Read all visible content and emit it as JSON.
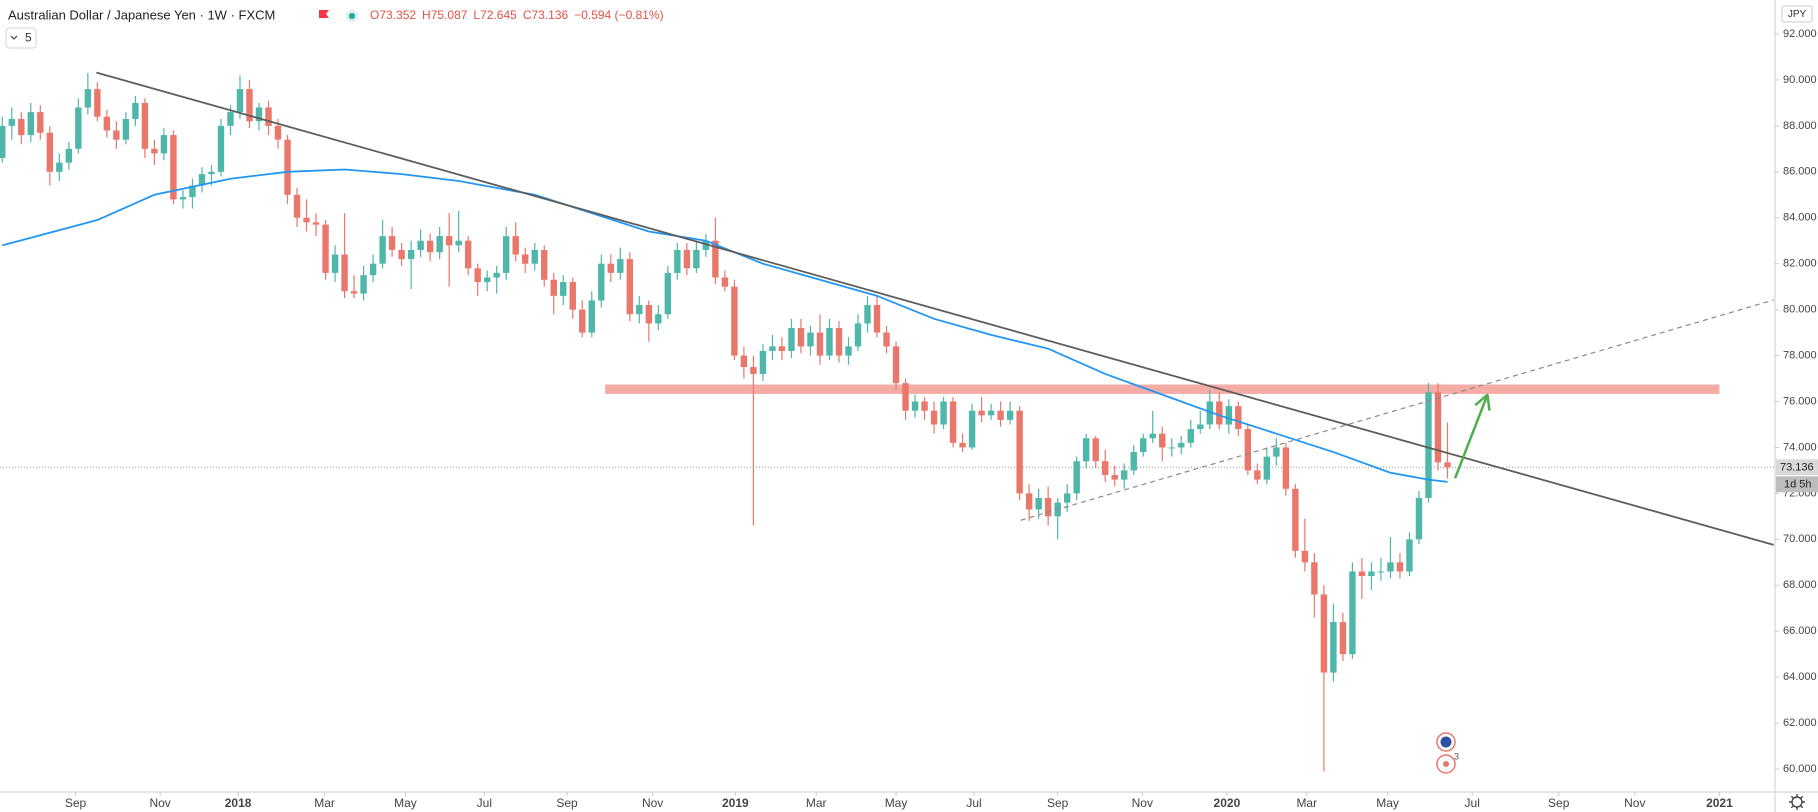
{
  "header": {
    "symbol": "Australian Dollar / Japanese Yen · 1W · FXCM",
    "ohlc": [
      "O73.352",
      "H75.087",
      "L72.645",
      "C73.136"
    ],
    "change": "−0.594 (−0.81%)"
  },
  "indicators_count": 5,
  "currency": "JPY",
  "events_count": 3,
  "chart_data": {
    "type": "candlestick",
    "colors": {
      "up": "#4fb6aa",
      "down": "#e9776c"
    },
    "candles": [
      [
        86.6,
        88.4,
        86.4,
        88.0
      ],
      [
        88.0,
        88.8,
        87.4,
        88.3
      ],
      [
        88.3,
        88.6,
        87.2,
        87.6
      ],
      [
        87.6,
        89.0,
        87.3,
        88.6
      ],
      [
        88.6,
        88.9,
        87.4,
        87.7
      ],
      [
        87.7,
        88.0,
        85.4,
        86.0
      ],
      [
        86.0,
        86.8,
        85.6,
        86.4
      ],
      [
        86.4,
        87.3,
        86.1,
        87.0
      ],
      [
        87.0,
        89.2,
        86.8,
        88.8
      ],
      [
        88.8,
        90.3,
        88.5,
        89.6
      ],
      [
        89.6,
        89.9,
        88.2,
        88.4
      ],
      [
        88.4,
        88.7,
        87.5,
        87.8
      ],
      [
        87.8,
        88.2,
        87.0,
        87.4
      ],
      [
        87.4,
        88.6,
        87.2,
        88.3
      ],
      [
        88.3,
        89.3,
        88.0,
        89.0
      ],
      [
        89.0,
        89.2,
        86.6,
        87.0
      ],
      [
        87.0,
        87.4,
        86.3,
        86.8
      ],
      [
        86.8,
        87.9,
        86.5,
        87.6
      ],
      [
        87.6,
        87.8,
        84.6,
        84.8
      ],
      [
        84.8,
        85.2,
        84.4,
        84.9
      ],
      [
        84.9,
        85.7,
        84.4,
        85.4
      ],
      [
        85.4,
        86.2,
        85.1,
        85.9
      ],
      [
        85.9,
        86.3,
        85.4,
        86.0
      ],
      [
        86.0,
        88.3,
        85.8,
        88.0
      ],
      [
        88.0,
        88.9,
        87.6,
        88.6
      ],
      [
        88.6,
        90.2,
        88.3,
        89.6
      ],
      [
        89.6,
        90.0,
        87.9,
        88.2
      ],
      [
        88.2,
        89.0,
        87.8,
        88.8
      ],
      [
        88.8,
        89.1,
        87.6,
        88.0
      ],
      [
        88.0,
        88.3,
        87.0,
        87.4
      ],
      [
        87.4,
        87.6,
        84.6,
        85.0
      ],
      [
        85.0,
        85.3,
        83.6,
        84.0
      ],
      [
        84.0,
        84.8,
        83.4,
        83.8
      ],
      [
        83.8,
        84.2,
        83.2,
        83.7
      ],
      [
        83.7,
        83.9,
        81.3,
        81.6
      ],
      [
        81.6,
        82.8,
        81.2,
        82.4
      ],
      [
        82.4,
        84.2,
        80.5,
        80.8
      ],
      [
        80.8,
        81.5,
        80.5,
        80.7
      ],
      [
        80.7,
        81.9,
        80.4,
        81.5
      ],
      [
        81.5,
        82.4,
        81.2,
        82.0
      ],
      [
        82.0,
        83.9,
        81.8,
        83.2
      ],
      [
        83.2,
        83.6,
        82.3,
        82.6
      ],
      [
        82.6,
        82.9,
        81.9,
        82.2
      ],
      [
        82.2,
        83.0,
        80.9,
        82.6
      ],
      [
        82.6,
        83.5,
        82.3,
        83.0
      ],
      [
        83.0,
        83.3,
        82.1,
        82.5
      ],
      [
        82.5,
        83.6,
        82.2,
        83.2
      ],
      [
        83.2,
        84.2,
        81.0,
        82.8
      ],
      [
        82.8,
        84.3,
        82.5,
        83.0
      ],
      [
        83.0,
        83.2,
        81.5,
        81.8
      ],
      [
        81.8,
        82.0,
        80.6,
        81.2
      ],
      [
        81.2,
        81.7,
        80.8,
        81.4
      ],
      [
        81.4,
        81.9,
        80.7,
        81.6
      ],
      [
        81.6,
        83.6,
        81.3,
        83.2
      ],
      [
        83.2,
        83.8,
        82.1,
        82.4
      ],
      [
        82.4,
        82.7,
        81.6,
        82.0
      ],
      [
        82.0,
        82.9,
        81.7,
        82.6
      ],
      [
        82.6,
        82.8,
        81.0,
        81.3
      ],
      [
        81.3,
        81.6,
        79.8,
        80.6
      ],
      [
        80.6,
        81.5,
        80.2,
        81.2
      ],
      [
        81.2,
        81.4,
        79.6,
        80.0
      ],
      [
        80.0,
        80.4,
        78.8,
        79.0
      ],
      [
        79.0,
        80.8,
        78.8,
        80.4
      ],
      [
        80.4,
        82.4,
        80.1,
        82.0
      ],
      [
        82.0,
        82.4,
        81.2,
        81.6
      ],
      [
        81.6,
        82.7,
        81.3,
        82.2
      ],
      [
        82.2,
        82.5,
        79.5,
        79.8
      ],
      [
        79.8,
        80.6,
        79.4,
        80.2
      ],
      [
        80.2,
        80.4,
        78.6,
        79.4
      ],
      [
        79.4,
        80.2,
        79.1,
        79.8
      ],
      [
        79.8,
        81.9,
        79.6,
        81.6
      ],
      [
        81.6,
        82.9,
        81.3,
        82.6
      ],
      [
        82.6,
        82.9,
        81.5,
        81.8
      ],
      [
        81.8,
        83.0,
        81.6,
        82.6
      ],
      [
        82.6,
        83.3,
        82.3,
        83.0
      ],
      [
        83.0,
        84.0,
        81.1,
        81.4
      ],
      [
        81.4,
        81.7,
        80.8,
        81.0
      ],
      [
        81.0,
        81.3,
        77.8,
        78.0
      ],
      [
        78.0,
        78.4,
        77.0,
        77.5
      ],
      [
        77.5,
        78.0,
        70.6,
        77.2
      ],
      [
        77.2,
        78.5,
        76.9,
        78.2
      ],
      [
        78.2,
        78.9,
        77.8,
        78.4
      ],
      [
        78.4,
        78.8,
        77.8,
        78.2
      ],
      [
        78.2,
        79.6,
        77.9,
        79.2
      ],
      [
        79.2,
        79.6,
        78.1,
        78.4
      ],
      [
        78.4,
        79.3,
        78.0,
        79.0
      ],
      [
        79.0,
        79.8,
        77.6,
        78.0
      ],
      [
        78.0,
        79.6,
        77.8,
        79.2
      ],
      [
        79.2,
        79.5,
        77.7,
        78.0
      ],
      [
        78.0,
        78.8,
        77.6,
        78.4
      ],
      [
        78.4,
        79.8,
        78.2,
        79.4
      ],
      [
        79.4,
        80.6,
        79.0,
        80.2
      ],
      [
        80.2,
        80.6,
        78.8,
        79.0
      ],
      [
        79.0,
        79.3,
        78.1,
        78.4
      ],
      [
        78.4,
        78.6,
        76.5,
        76.8
      ],
      [
        76.8,
        77.0,
        75.2,
        75.6
      ],
      [
        75.6,
        76.3,
        75.3,
        76.0
      ],
      [
        76.0,
        76.2,
        75.2,
        75.6
      ],
      [
        75.6,
        76.0,
        74.6,
        75.0
      ],
      [
        75.0,
        76.2,
        74.8,
        76.0
      ],
      [
        76.0,
        76.2,
        74.0,
        74.2
      ],
      [
        74.2,
        74.6,
        73.8,
        74.0
      ],
      [
        74.0,
        75.9,
        73.9,
        75.6
      ],
      [
        75.6,
        76.2,
        75.1,
        75.4
      ],
      [
        75.4,
        75.9,
        75.2,
        75.6
      ],
      [
        75.6,
        76.0,
        74.9,
        75.2
      ],
      [
        75.2,
        76.0,
        75.0,
        75.6
      ],
      [
        75.6,
        75.8,
        71.7,
        72.0
      ],
      [
        72.0,
        72.4,
        70.8,
        71.3
      ],
      [
        71.3,
        72.2,
        70.9,
        71.8
      ],
      [
        71.8,
        72.3,
        70.6,
        71.0
      ],
      [
        71.0,
        71.8,
        70.0,
        71.6
      ],
      [
        71.6,
        72.4,
        71.2,
        72.0
      ],
      [
        72.0,
        73.6,
        71.7,
        73.4
      ],
      [
        73.4,
        74.6,
        73.1,
        74.4
      ],
      [
        74.4,
        74.5,
        73.1,
        73.4
      ],
      [
        73.4,
        73.9,
        72.5,
        72.8
      ],
      [
        72.8,
        73.2,
        72.3,
        72.6
      ],
      [
        72.6,
        73.3,
        72.2,
        73.0
      ],
      [
        73.0,
        74.1,
        72.8,
        73.8
      ],
      [
        73.8,
        74.6,
        73.6,
        74.4
      ],
      [
        74.4,
        75.6,
        74.2,
        74.6
      ],
      [
        74.6,
        74.9,
        73.4,
        74.0
      ],
      [
        74.0,
        74.4,
        73.6,
        74.0
      ],
      [
        74.0,
        74.5,
        73.7,
        74.2
      ],
      [
        74.2,
        75.2,
        74.0,
        74.8
      ],
      [
        74.8,
        75.6,
        74.6,
        75.0
      ],
      [
        75.0,
        76.5,
        74.8,
        76.0
      ],
      [
        76.0,
        76.4,
        74.8,
        75.0
      ],
      [
        75.0,
        76.1,
        74.6,
        75.8
      ],
      [
        75.8,
        76.0,
        74.5,
        74.8
      ],
      [
        74.8,
        75.0,
        72.8,
        73.0
      ],
      [
        73.0,
        73.3,
        72.4,
        72.6
      ],
      [
        72.6,
        74.0,
        72.4,
        73.6
      ],
      [
        73.6,
        74.4,
        73.2,
        74.0
      ],
      [
        74.0,
        74.2,
        71.9,
        72.2
      ],
      [
        72.2,
        72.4,
        69.2,
        69.5
      ],
      [
        69.5,
        70.9,
        68.6,
        69.0
      ],
      [
        69.0,
        69.4,
        66.6,
        67.6
      ],
      [
        67.6,
        68.0,
        59.9,
        64.2
      ],
      [
        64.2,
        67.2,
        63.8,
        66.4
      ],
      [
        66.4,
        66.8,
        64.7,
        65.0
      ],
      [
        65.0,
        69.0,
        64.8,
        68.6
      ],
      [
        68.6,
        69.2,
        67.4,
        68.4
      ],
      [
        68.4,
        69.0,
        67.8,
        68.6
      ],
      [
        68.6,
        69.2,
        68.2,
        68.6
      ],
      [
        68.6,
        70.1,
        68.3,
        69.0
      ],
      [
        69.0,
        69.4,
        68.3,
        68.6
      ],
      [
        68.6,
        70.3,
        68.4,
        70.0
      ],
      [
        70.0,
        72.1,
        69.8,
        71.8
      ],
      [
        71.8,
        76.8,
        71.6,
        76.4
      ],
      [
        76.4,
        76.8,
        73.0,
        73.35
      ],
      [
        73.352,
        75.087,
        72.645,
        73.136
      ]
    ],
    "moving_average": {
      "color": "#2196f3",
      "x": [
        0,
        10,
        16,
        24,
        30,
        36,
        42,
        48,
        56,
        62,
        68,
        74,
        80,
        86,
        92,
        98,
        104,
        110,
        116,
        122,
        128,
        134,
        140,
        146,
        150,
        152
      ],
      "values": [
        82.8,
        83.9,
        85.0,
        85.7,
        86.0,
        86.1,
        85.9,
        85.6,
        85.0,
        84.2,
        83.4,
        83.0,
        82.0,
        81.3,
        80.6,
        79.6,
        78.9,
        78.3,
        77.2,
        76.3,
        75.4,
        74.6,
        73.8,
        72.9,
        72.6,
        72.5
      ]
    },
    "drawings": {
      "trendline": {
        "color": "#5d5d5d",
        "x": [
          9.9,
          186.3
        ],
        "y": [
          90.32,
          69.76
        ]
      },
      "dashed_line": {
        "color": "#8a8a8a",
        "x": [
          107.1,
          186.3
        ],
        "y": [
          70.83,
          80.42
        ]
      },
      "zone": {
        "color": "#f4a39b",
        "x": [
          63.4,
          180.6
        ],
        "y": [
          76.33,
          76.74
        ]
      },
      "arrow": {
        "color": "#4caf50",
        "x": [
          152.8,
          156.2
        ],
        "y": [
          72.66,
          76.29
        ]
      }
    },
    "last_price": 73.136,
    "countdown": "1d 5h",
    "xlim": [
      -0.24,
      186.34
    ],
    "xticks": [
      {
        "value": 7.7,
        "label": "Sep"
      },
      {
        "value": 16.6,
        "label": "Nov"
      },
      {
        "value": 24.8,
        "label": "2018"
      },
      {
        "value": 33.9,
        "label": "Mar"
      },
      {
        "value": 42.4,
        "label": "May"
      },
      {
        "value": 50.7,
        "label": "Jul"
      },
      {
        "value": 59.4,
        "label": "Sep"
      },
      {
        "value": 68.4,
        "label": "Nov"
      },
      {
        "value": 77.1,
        "label": "2019"
      },
      {
        "value": 85.6,
        "label": "Mar"
      },
      {
        "value": 94.0,
        "label": "May"
      },
      {
        "value": 102.2,
        "label": "Jul"
      },
      {
        "value": 111.0,
        "label": "Sep"
      },
      {
        "value": 119.9,
        "label": "Nov"
      },
      {
        "value": 128.8,
        "label": "2020"
      },
      {
        "value": 137.2,
        "label": "Mar"
      },
      {
        "value": 145.7,
        "label": "May"
      },
      {
        "value": 154.6,
        "label": "Jul"
      },
      {
        "value": 163.7,
        "label": "Sep"
      },
      {
        "value": 171.7,
        "label": "Nov"
      },
      {
        "value": 180.6,
        "label": "2021"
      }
    ],
    "ylim": [
      59.0,
      93.48
    ],
    "yticks": [
      {
        "value": 60,
        "label": "60.000"
      },
      {
        "value": 62,
        "label": "62.000"
      },
      {
        "value": 64,
        "label": "64.000"
      },
      {
        "value": 66,
        "label": "66.000"
      },
      {
        "value": 68,
        "label": "68.000"
      },
      {
        "value": 70,
        "label": "70.000"
      },
      {
        "value": 72,
        "label": "72.000"
      },
      {
        "value": 74,
        "label": "74.000"
      },
      {
        "value": 76,
        "label": "76.000"
      },
      {
        "value": 78,
        "label": "78.000"
      },
      {
        "value": 80,
        "label": "80.000"
      },
      {
        "value": 82,
        "label": "82.000"
      },
      {
        "value": 84,
        "label": "84.000"
      },
      {
        "value": 86,
        "label": "86.000"
      },
      {
        "value": 88,
        "label": "88.000"
      },
      {
        "value": 90,
        "label": "90.000"
      },
      {
        "value": 92,
        "label": "92.000"
      }
    ],
    "grid": false
  }
}
